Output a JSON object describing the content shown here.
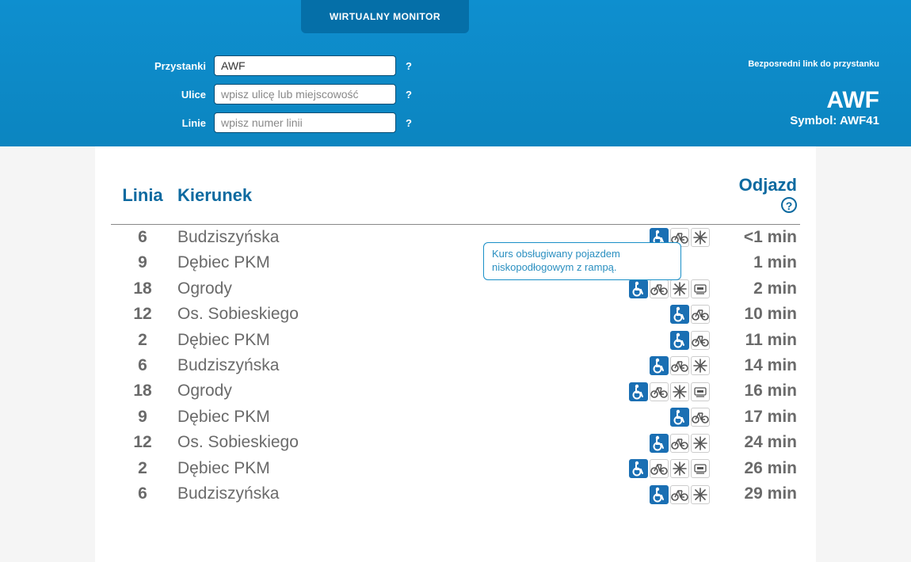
{
  "colors": {
    "header_bg": "#0d8ac7",
    "tab_bg": "#056fa8",
    "accent": "#0d6aa0",
    "icon_fill": "#1a6fb3",
    "text_muted": "#6b6b6b",
    "text_dark": "#333333",
    "border": "#888888",
    "white": "#ffffff"
  },
  "tab": {
    "label": "WIRTUALNY MONITOR"
  },
  "search": {
    "stops_label": "Przystanki",
    "stops_value": "AWF",
    "streets_label": "Ulice",
    "streets_placeholder": "wpisz ulicę lub miejscowość",
    "lines_label": "Linie",
    "lines_placeholder": "wpisz numer linii",
    "help": "?"
  },
  "stop": {
    "direct_link_label": "Bezposredni link do przystanku",
    "name": "AWF",
    "symbol_label": "Symbol: AWF41"
  },
  "table": {
    "col_line": "Linia",
    "col_direction": "Kierunek",
    "col_departure": "Odjazd",
    "help_symbol": "?"
  },
  "tooltip": {
    "line1": "Kurs obsługiwany pojazdem",
    "line2": "niskopodłogowym z rampą."
  },
  "icon_meanings": {
    "wheelchair": "low-floor vehicle with ramp",
    "bike": "bicycle transport",
    "ac": "air conditioning",
    "usb": "ticket machine / usb"
  },
  "departures": [
    {
      "line": "6",
      "direction": "Budziszyńska",
      "time": "<1 min",
      "icons": [
        "wheelchair",
        "bike",
        "ac"
      ],
      "tooltip": true
    },
    {
      "line": "9",
      "direction": "Dębiec PKM",
      "time": "1 min",
      "icons": []
    },
    {
      "line": "18",
      "direction": "Ogrody",
      "time": "2 min",
      "icons": [
        "wheelchair",
        "bike",
        "ac",
        "usb"
      ]
    },
    {
      "line": "12",
      "direction": "Os. Sobieskiego",
      "time": "10 min",
      "icons": [
        "wheelchair",
        "bike"
      ]
    },
    {
      "line": "2",
      "direction": "Dębiec PKM",
      "time": "11 min",
      "icons": [
        "wheelchair",
        "bike"
      ]
    },
    {
      "line": "6",
      "direction": "Budziszyńska",
      "time": "14 min",
      "icons": [
        "wheelchair",
        "bike",
        "ac"
      ]
    },
    {
      "line": "18",
      "direction": "Ogrody",
      "time": "16 min",
      "icons": [
        "wheelchair",
        "bike",
        "ac",
        "usb"
      ]
    },
    {
      "line": "9",
      "direction": "Dębiec PKM",
      "time": "17 min",
      "icons": [
        "wheelchair",
        "bike"
      ]
    },
    {
      "line": "12",
      "direction": "Os. Sobieskiego",
      "time": "24 min",
      "icons": [
        "wheelchair",
        "bike",
        "ac"
      ]
    },
    {
      "line": "2",
      "direction": "Dębiec PKM",
      "time": "26 min",
      "icons": [
        "wheelchair",
        "bike",
        "ac",
        "usb"
      ]
    },
    {
      "line": "6",
      "direction": "Budziszyńska",
      "time": "29 min",
      "icons": [
        "wheelchair",
        "bike",
        "ac"
      ]
    }
  ]
}
